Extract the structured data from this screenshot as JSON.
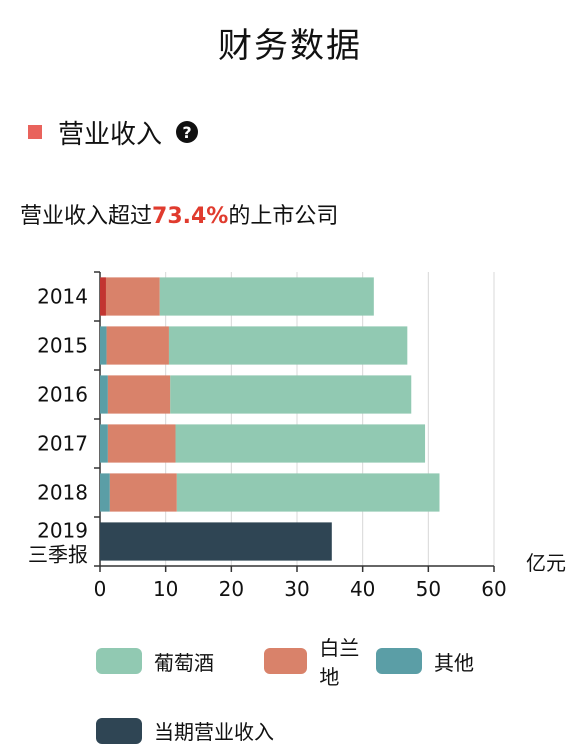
{
  "header": {
    "title": "财务数据"
  },
  "section": {
    "label": "营业收入",
    "help_icon": "question-circle-icon",
    "marker_color": "#e9635c"
  },
  "ranking": {
    "prefix": "营业收入超过",
    "percent": "73.4%",
    "suffix": "的上市公司"
  },
  "chart_data": {
    "type": "bar",
    "orientation": "horizontal",
    "stacked": true,
    "unit_label": "亿元",
    "categories": [
      "2014",
      "2015",
      "2016",
      "2017",
      "2018",
      "2019\n三季报"
    ],
    "xlim": [
      0,
      60
    ],
    "xticks": [
      0,
      10,
      20,
      30,
      40,
      50,
      60
    ],
    "grid": "vertical",
    "legend_position": "bottom",
    "series": [
      {
        "name": "其他",
        "color": "#5b9ea6",
        "values": [
          0.3,
          1.0,
          1.2,
          1.2,
          1.5,
          0
        ]
      },
      {
        "name": "白兰地",
        "color": "#d9826a",
        "values": [
          8.8,
          9.5,
          9.5,
          10.3,
          10.2,
          0
        ]
      },
      {
        "name": "葡萄酒",
        "color": "#91c9b2",
        "values": [
          32.6,
          36.3,
          36.7,
          38.0,
          40.0,
          0
        ]
      },
      {
        "name": "当期营业收入",
        "color": "#2f4554",
        "values": [
          0,
          0,
          0,
          0,
          0,
          35.3
        ]
      }
    ],
    "annotations": [
      {
        "category": "2014",
        "color": "#c23531",
        "value": 0.9
      }
    ]
  },
  "legend": {
    "items": [
      {
        "name": "葡萄酒",
        "color": "#91c9b2"
      },
      {
        "name": "白兰地",
        "color": "#d9826a"
      },
      {
        "name": "其他",
        "color": "#5b9ea6"
      },
      {
        "name": "当期营业收入",
        "color": "#2f4554"
      }
    ]
  }
}
